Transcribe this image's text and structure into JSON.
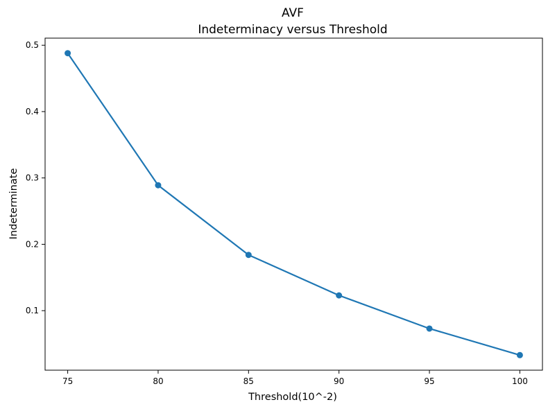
{
  "chart_data": {
    "type": "line",
    "title": "AVF",
    "subtitle": "Indeterminacy versus Threshold",
    "xlabel": "Threshold(10^-2)",
    "ylabel": "Indeterminate",
    "x": [
      75,
      80,
      85,
      90,
      95,
      100
    ],
    "series": [
      {
        "values": [
          0.488,
          0.289,
          0.184,
          0.123,
          0.073,
          0.033
        ]
      }
    ],
    "xlim": [
      73.75,
      101.25
    ],
    "ylim": [
      0.0103,
      0.5107
    ],
    "xticks": [
      75,
      80,
      85,
      90,
      95,
      100
    ],
    "yticks": [
      0.1,
      0.2,
      0.3,
      0.4,
      0.5
    ],
    "grid": false,
    "legend": "none",
    "line_color": "#1f77b4"
  }
}
